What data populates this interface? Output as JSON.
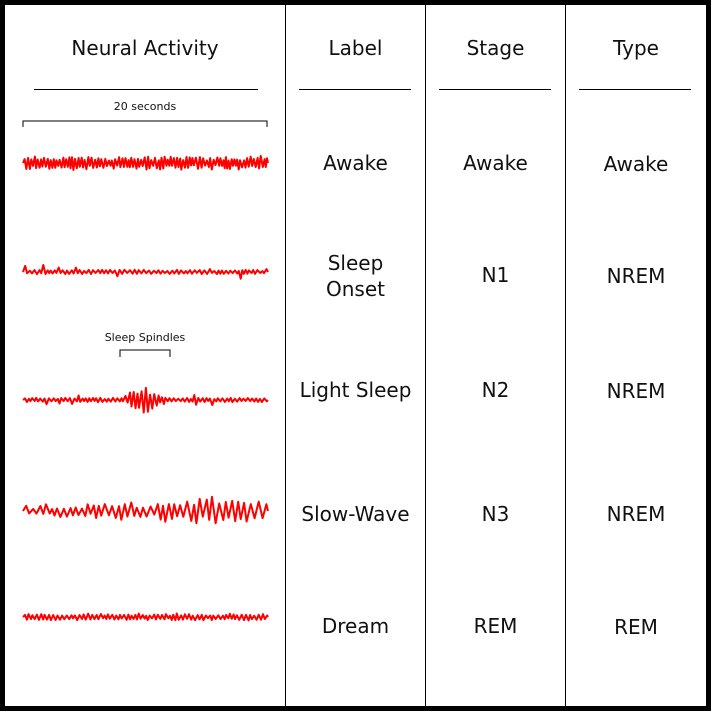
{
  "headers": {
    "neural_activity": "Neural Activity",
    "label": "Label",
    "stage": "Stage",
    "type": "Type"
  },
  "scale_label": "20 seconds",
  "spindle_label": "Sleep Spindles",
  "wave_color": "#ff0000",
  "rows": [
    {
      "label": "Awake",
      "stage": "Awake",
      "type": "Awake",
      "wave": "awake"
    },
    {
      "label_lines": [
        "Sleep",
        "Onset"
      ],
      "stage": "N1",
      "type": "NREM",
      "wave": "n1"
    },
    {
      "label": "Light Sleep",
      "stage": "N2",
      "type": "NREM",
      "wave": "n2"
    },
    {
      "label": "Slow-Wave",
      "stage": "N3",
      "type": "NREM",
      "wave": "n3"
    },
    {
      "label": "Dream",
      "stage": "REM",
      "type": "REM",
      "wave": "rem"
    }
  ]
}
